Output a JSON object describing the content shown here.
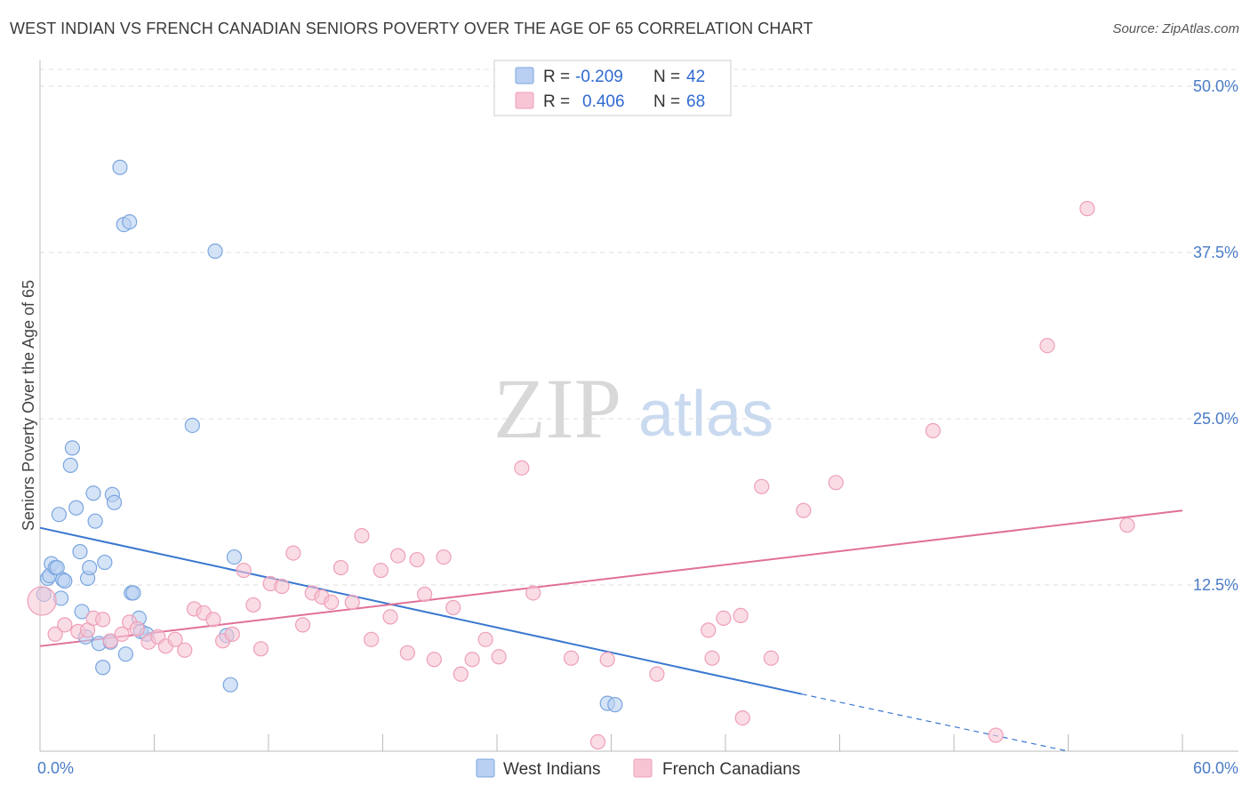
{
  "header": {
    "title": "WEST INDIAN VS FRENCH CANADIAN SENIORS POVERTY OVER THE AGE OF 65 CORRELATION CHART",
    "source": "Source: ZipAtlas.com"
  },
  "watermark": {
    "zip": "ZIP",
    "atlas": "atlas"
  },
  "colors": {
    "west_indian_fill": "#b9d0f2",
    "west_indian_stroke": "#7aa6df",
    "west_indian_line": "#3a78d0",
    "french_canadian_fill": "#f7c4d4",
    "french_canadian_stroke": "#ee9fb8",
    "french_canadian_line": "#e07098",
    "grid": "#dddddd",
    "axis_text": "#4a7cc6"
  },
  "legend": {
    "rows": [
      {
        "r_label": "R =",
        "r_value": "-0.209",
        "n_label": "N =",
        "n_value": "42"
      },
      {
        "r_label": "R =",
        "r_value": "0.406",
        "n_label": "N =",
        "n_value": "68"
      }
    ]
  },
  "chart_data": {
    "type": "scatter",
    "title": "WEST INDIAN VS FRENCH CANADIAN SENIORS POVERTY OVER THE AGE OF 65 CORRELATION CHART",
    "ylabel": "Seniors Poverty Over the Age of 65",
    "xlabel": "",
    "xlim": [
      0,
      60
    ],
    "ylim": [
      0,
      50
    ],
    "x_tick_labels": [
      {
        "value": 0,
        "label": "0.0%"
      },
      {
        "value": 60,
        "label": "60.0%"
      }
    ],
    "y_tick_labels": [
      {
        "value": 12.5,
        "label": "12.5%"
      },
      {
        "value": 25,
        "label": "25.0%"
      },
      {
        "value": 37.5,
        "label": "37.5%"
      },
      {
        "value": 50,
        "label": "50.0%"
      }
    ],
    "grid": "horizontal dashed",
    "legend_placement": "top-center",
    "series": [
      {
        "name": "West Indians",
        "r": -0.209,
        "n": 42,
        "trend": {
          "x0": 0,
          "y0": 16.8,
          "x1": 40,
          "y1": 4.3,
          "dashed_to_x": 54,
          "dashed_to_y": 0
        },
        "points": [
          [
            0.2,
            11.8
          ],
          [
            0.4,
            13.0
          ],
          [
            0.5,
            13.2
          ],
          [
            0.6,
            14.1
          ],
          [
            0.8,
            13.8
          ],
          [
            0.9,
            13.8
          ],
          [
            1.0,
            17.8
          ],
          [
            1.1,
            11.5
          ],
          [
            1.2,
            12.9
          ],
          [
            1.3,
            12.8
          ],
          [
            1.6,
            21.5
          ],
          [
            1.7,
            22.8
          ],
          [
            1.9,
            18.3
          ],
          [
            2.1,
            15.0
          ],
          [
            2.2,
            10.5
          ],
          [
            2.4,
            8.6
          ],
          [
            2.5,
            13.0
          ],
          [
            2.6,
            13.8
          ],
          [
            2.8,
            19.4
          ],
          [
            2.9,
            17.3
          ],
          [
            3.1,
            8.1
          ],
          [
            3.3,
            6.3
          ],
          [
            3.4,
            14.2
          ],
          [
            3.7,
            8.2
          ],
          [
            3.8,
            19.3
          ],
          [
            3.9,
            18.7
          ],
          [
            4.2,
            43.9
          ],
          [
            4.4,
            39.6
          ],
          [
            4.5,
            7.3
          ],
          [
            4.7,
            39.8
          ],
          [
            4.8,
            11.9
          ],
          [
            4.9,
            11.9
          ],
          [
            5.2,
            10.0
          ],
          [
            5.3,
            9.0
          ],
          [
            5.6,
            8.8
          ],
          [
            8.0,
            24.5
          ],
          [
            9.2,
            37.6
          ],
          [
            9.8,
            8.7
          ],
          [
            10.0,
            5.0
          ],
          [
            10.2,
            14.6
          ],
          [
            29.8,
            3.6
          ],
          [
            30.2,
            3.5
          ]
        ]
      },
      {
        "name": "French Canadians",
        "r": 0.406,
        "n": 68,
        "trend": {
          "x0": 0,
          "y0": 7.9,
          "x1": 60,
          "y1": 18.1
        },
        "points": [
          [
            0.1,
            11.3
          ],
          [
            0.8,
            8.8
          ],
          [
            1.3,
            9.5
          ],
          [
            2.0,
            9.0
          ],
          [
            2.5,
            9.1
          ],
          [
            2.8,
            10.0
          ],
          [
            3.3,
            9.9
          ],
          [
            3.7,
            8.3
          ],
          [
            4.3,
            8.8
          ],
          [
            4.7,
            9.7
          ],
          [
            5.1,
            9.2
          ],
          [
            5.7,
            8.2
          ],
          [
            6.2,
            8.6
          ],
          [
            6.6,
            7.9
          ],
          [
            7.1,
            8.4
          ],
          [
            7.6,
            7.6
          ],
          [
            8.1,
            10.7
          ],
          [
            8.6,
            10.4
          ],
          [
            9.1,
            9.9
          ],
          [
            9.6,
            8.3
          ],
          [
            10.1,
            8.8
          ],
          [
            10.7,
            13.6
          ],
          [
            11.2,
            11.0
          ],
          [
            11.6,
            7.7
          ],
          [
            12.1,
            12.6
          ],
          [
            12.7,
            12.4
          ],
          [
            13.3,
            14.9
          ],
          [
            13.8,
            9.5
          ],
          [
            14.3,
            11.9
          ],
          [
            14.8,
            11.6
          ],
          [
            15.3,
            11.2
          ],
          [
            15.8,
            13.8
          ],
          [
            16.4,
            11.2
          ],
          [
            16.9,
            16.2
          ],
          [
            17.4,
            8.4
          ],
          [
            17.9,
            13.6
          ],
          [
            18.4,
            10.1
          ],
          [
            18.8,
            14.7
          ],
          [
            19.3,
            7.4
          ],
          [
            19.8,
            14.4
          ],
          [
            20.2,
            11.8
          ],
          [
            20.7,
            6.9
          ],
          [
            21.2,
            14.6
          ],
          [
            21.7,
            10.8
          ],
          [
            22.1,
            5.8
          ],
          [
            22.7,
            6.9
          ],
          [
            23.4,
            8.4
          ],
          [
            24.1,
            7.1
          ],
          [
            25.3,
            21.3
          ],
          [
            25.9,
            11.9
          ],
          [
            27.9,
            7.0
          ],
          [
            29.3,
            0.7
          ],
          [
            29.8,
            6.9
          ],
          [
            32.4,
            5.8
          ],
          [
            35.1,
            9.1
          ],
          [
            35.3,
            7.0
          ],
          [
            35.9,
            10.0
          ],
          [
            36.8,
            10.2
          ],
          [
            36.9,
            2.5
          ],
          [
            37.9,
            19.9
          ],
          [
            38.4,
            7.0
          ],
          [
            40.1,
            18.1
          ],
          [
            41.8,
            20.2
          ],
          [
            46.9,
            24.1
          ],
          [
            50.2,
            1.2
          ],
          [
            52.9,
            30.5
          ],
          [
            55.0,
            40.8
          ],
          [
            57.1,
            17.0
          ]
        ]
      }
    ]
  },
  "bottom_legend": {
    "items": [
      {
        "label": "West Indians"
      },
      {
        "label": "French Canadians"
      }
    ]
  }
}
